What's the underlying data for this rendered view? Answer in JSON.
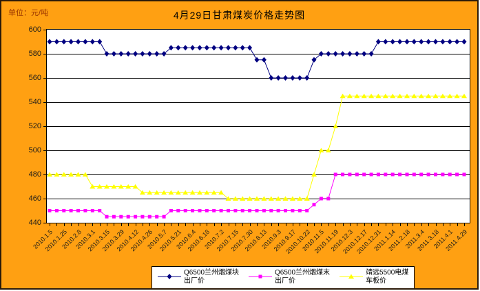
{
  "chart_data": {
    "type": "line",
    "title": "4月29日甘肃煤炭价格走势图",
    "unit_label": "单位：元/吨",
    "ylabel": "元/吨",
    "ylim": [
      440,
      600
    ],
    "yticks": [
      600,
      580,
      560,
      540,
      520,
      500,
      480,
      460,
      440
    ],
    "grid": true,
    "legend_position": "bottom",
    "n_points": 59,
    "x_label_every_nth_point": 2,
    "x_tick_labels": [
      "2010.1.5",
      "2010.1.25",
      "2010.2.8",
      "2010.3.1",
      "2010.3.15",
      "2010.3.29",
      "2010.4.12",
      "2010.4.26",
      "2010.5.7",
      "2010.5.21",
      "2010.6.4",
      "2010.6.18",
      "2010.7.2",
      "2010.7.15",
      "2010.7.30",
      "2010.8.13",
      "2010.9.3",
      "2010.9.17",
      "2010.10.22",
      "2010.11.5",
      "2010.11.19",
      "2010.12.3",
      "2010.12.17",
      "2010.12.31",
      "2011.1.14",
      "2011.2.18",
      "2011.3.4",
      "2011.3.18",
      "2011.4.1",
      "2011.4.29"
    ],
    "series": [
      {
        "name": "Q6500兰州烟煤块出厂价",
        "legend_lines": [
          "Q6500兰州烟煤块",
          "出厂价"
        ],
        "color": "#000080",
        "marker": "diamond",
        "values": [
          590,
          590,
          590,
          590,
          590,
          590,
          590,
          590,
          580,
          580,
          580,
          580,
          580,
          580,
          580,
          580,
          580,
          585,
          585,
          585,
          585,
          585,
          585,
          585,
          585,
          585,
          585,
          585,
          585,
          575,
          575,
          560,
          560,
          560,
          560,
          560,
          560,
          575,
          580,
          580,
          580,
          580,
          580,
          580,
          580,
          580,
          590,
          590,
          590,
          590,
          590,
          590,
          590,
          590,
          590,
          590,
          590,
          590,
          590
        ]
      },
      {
        "name": "Q6500兰州烟煤末出厂价",
        "legend_lines": [
          "Q6500兰州烟煤末",
          "出厂价"
        ],
        "color": "#ff00ff",
        "marker": "square",
        "values": [
          450,
          450,
          450,
          450,
          450,
          450,
          450,
          450,
          445,
          445,
          445,
          445,
          445,
          445,
          445,
          445,
          445,
          450,
          450,
          450,
          450,
          450,
          450,
          450,
          450,
          450,
          450,
          450,
          450,
          450,
          450,
          450,
          450,
          450,
          450,
          450,
          450,
          455,
          460,
          460,
          480,
          480,
          480,
          480,
          480,
          480,
          480,
          480,
          480,
          480,
          480,
          480,
          480,
          480,
          480,
          480,
          480,
          480,
          480
        ]
      },
      {
        "name": "靖远5500电煤车板价",
        "legend_lines": [
          "靖远5500电煤",
          "车板价"
        ],
        "color": "#ffff00",
        "marker": "triangle",
        "values": [
          480,
          480,
          480,
          480,
          480,
          480,
          470,
          470,
          470,
          470,
          470,
          470,
          470,
          465,
          465,
          465,
          465,
          465,
          465,
          465,
          465,
          465,
          465,
          465,
          465,
          460,
          460,
          460,
          460,
          460,
          460,
          460,
          460,
          460,
          460,
          460,
          460,
          480,
          500,
          500,
          520,
          545,
          545,
          545,
          545,
          545,
          545,
          545,
          545,
          545,
          545,
          545,
          545,
          545,
          545,
          545,
          545,
          545,
          545
        ]
      }
    ],
    "colors": {
      "background": "#ffa012",
      "plot_background": "#ffffff",
      "gridline": "#000000",
      "frame_border": "#2b1a08",
      "unit_text": "#993300",
      "axis_text": "#1a1a1a"
    }
  }
}
